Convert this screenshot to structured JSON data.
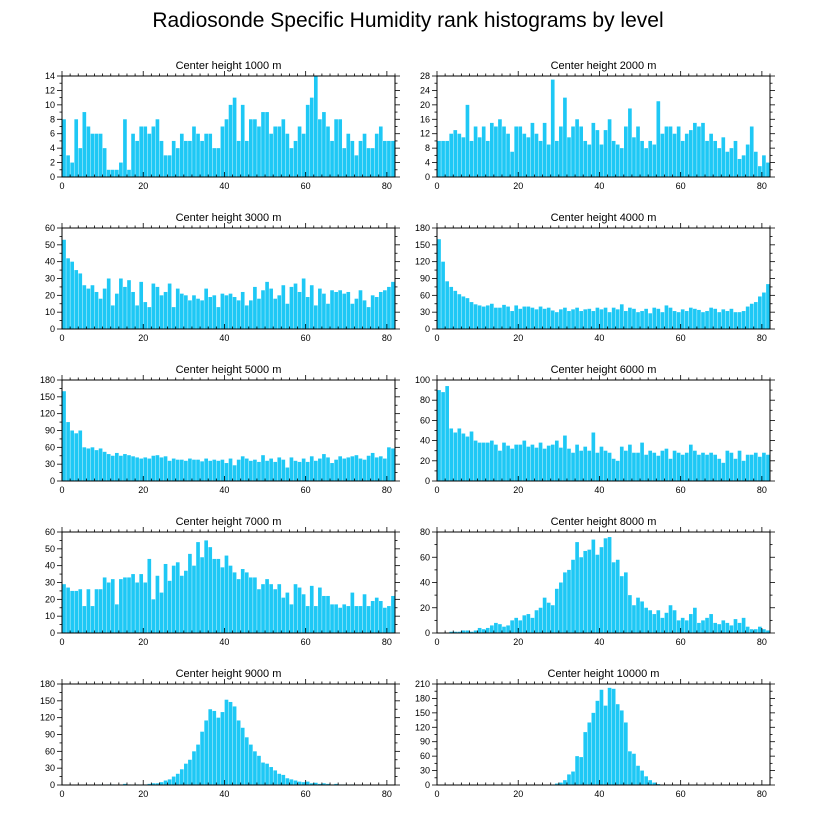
{
  "figure_title": "Radiosonde Specific Humidity rank histograms by level",
  "bar_color": "#1ec8f5",
  "axis_color": "#000000",
  "chart_data": [
    {
      "type": "bar",
      "title": "Center height 1000 m",
      "xlabel": "",
      "ylabel": "",
      "xlim": [
        0,
        82
      ],
      "xticks": [
        0,
        20,
        40,
        60,
        80
      ],
      "ylim": [
        0,
        14
      ],
      "yticks": [
        0,
        2,
        4,
        6,
        8,
        10,
        12,
        14
      ],
      "values": [
        8,
        3,
        2,
        8,
        4,
        9,
        7,
        6,
        6,
        6,
        4,
        1,
        1,
        1,
        2,
        8,
        1,
        6,
        5,
        7,
        7,
        6,
        7,
        8,
        5,
        3,
        3,
        5,
        4,
        6,
        5,
        5,
        7,
        6,
        5,
        6,
        6,
        4,
        4,
        7,
        8,
        10,
        11,
        5,
        10,
        5,
        8,
        8,
        7,
        9,
        9,
        6,
        7,
        7,
        8,
        6,
        4,
        5,
        7,
        6,
        10,
        11,
        14,
        8,
        9,
        7,
        5,
        8,
        8,
        4,
        6,
        5,
        3,
        5,
        6,
        4,
        4,
        6,
        7,
        5,
        5,
        5
      ]
    },
    {
      "type": "bar",
      "title": "Center height 2000 m",
      "xlabel": "",
      "ylabel": "",
      "xlim": [
        0,
        82
      ],
      "xticks": [
        0,
        20,
        40,
        60,
        80
      ],
      "ylim": [
        0,
        28
      ],
      "yticks": [
        0,
        4,
        8,
        12,
        16,
        20,
        24,
        28
      ],
      "values": [
        10,
        10,
        10,
        12,
        13,
        12,
        11,
        20,
        10,
        14,
        11,
        14,
        10,
        15,
        14,
        16,
        14,
        12,
        7,
        14,
        14,
        12,
        11,
        15,
        12,
        10,
        15,
        9,
        27,
        10,
        14,
        22,
        11,
        14,
        16,
        14,
        10,
        9,
        15,
        13,
        9,
        13,
        16,
        10,
        9,
        8,
        14,
        19,
        11,
        14,
        10,
        8,
        10,
        9,
        21,
        12,
        14,
        14,
        12,
        14,
        10,
        12,
        13,
        15,
        14,
        15,
        10,
        12,
        10,
        8,
        11,
        7,
        8,
        10,
        5,
        6,
        9,
        14,
        7,
        3,
        6,
        4
      ]
    },
    {
      "type": "bar",
      "title": "Center height 3000 m",
      "xlabel": "",
      "ylabel": "",
      "xlim": [
        0,
        82
      ],
      "xticks": [
        0,
        20,
        40,
        60,
        80
      ],
      "ylim": [
        0,
        60
      ],
      "yticks": [
        0,
        10,
        20,
        30,
        40,
        50,
        60
      ],
      "values": [
        53,
        42,
        40,
        35,
        33,
        26,
        24,
        26,
        22,
        18,
        24,
        30,
        14,
        21,
        30,
        25,
        29,
        22,
        14,
        28,
        16,
        13,
        27,
        25,
        20,
        22,
        27,
        13,
        24,
        21,
        20,
        17,
        20,
        18,
        17,
        24,
        19,
        20,
        13,
        21,
        20,
        21,
        19,
        17,
        22,
        14,
        17,
        25,
        18,
        23,
        28,
        24,
        18,
        20,
        26,
        15,
        25,
        27,
        22,
        30,
        19,
        26,
        14,
        24,
        21,
        15,
        23,
        22,
        23,
        21,
        22,
        15,
        18,
        23,
        17,
        13,
        20,
        19,
        22,
        23,
        25,
        28
      ]
    },
    {
      "type": "bar",
      "title": "Center height 4000 m",
      "xlabel": "",
      "ylabel": "",
      "xlim": [
        0,
        82
      ],
      "xticks": [
        0,
        20,
        40,
        60,
        80
      ],
      "ylim": [
        0,
        180
      ],
      "yticks": [
        0,
        30,
        60,
        90,
        120,
        150,
        180
      ],
      "values": [
        160,
        120,
        85,
        75,
        68,
        62,
        58,
        55,
        48,
        44,
        42,
        40,
        42,
        45,
        38,
        38,
        43,
        40,
        32,
        42,
        36,
        40,
        40,
        38,
        35,
        40,
        36,
        38,
        33,
        30,
        35,
        38,
        32,
        35,
        38,
        32,
        35,
        36,
        32,
        38,
        35,
        38,
        30,
        38,
        35,
        44,
        32,
        38,
        36,
        30,
        32,
        36,
        28,
        38,
        36,
        30,
        42,
        38,
        32,
        30,
        35,
        32,
        38,
        36,
        34,
        30,
        32,
        38,
        36,
        30,
        35,
        32,
        36,
        30,
        30,
        32,
        40,
        45,
        48,
        58,
        65,
        80
      ]
    },
    {
      "type": "bar",
      "title": "Center height 5000 m",
      "xlabel": "",
      "ylabel": "",
      "xlim": [
        0,
        82
      ],
      "xticks": [
        0,
        20,
        40,
        60,
        80
      ],
      "ylim": [
        0,
        180
      ],
      "yticks": [
        0,
        30,
        60,
        90,
        120,
        150,
        180
      ],
      "values": [
        160,
        105,
        90,
        85,
        90,
        60,
        58,
        60,
        55,
        58,
        52,
        48,
        45,
        50,
        45,
        48,
        46,
        44,
        42,
        40,
        42,
        40,
        45,
        46,
        42,
        44,
        36,
        40,
        38,
        38,
        36,
        40,
        38,
        38,
        35,
        40,
        36,
        38,
        36,
        38,
        32,
        40,
        28,
        38,
        44,
        40,
        36,
        38,
        34,
        46,
        36,
        40,
        34,
        42,
        38,
        24,
        42,
        36,
        34,
        40,
        34,
        44,
        36,
        40,
        48,
        42,
        32,
        38,
        44,
        40,
        42,
        44,
        46,
        40,
        38,
        45,
        50,
        42,
        44,
        40,
        60,
        58
      ]
    },
    {
      "type": "bar",
      "title": "Center height 6000 m",
      "xlabel": "",
      "ylabel": "",
      "xlim": [
        0,
        82
      ],
      "xticks": [
        0,
        20,
        40,
        60,
        80
      ],
      "ylim": [
        0,
        100
      ],
      "yticks": [
        0,
        20,
        40,
        60,
        80,
        100
      ],
      "values": [
        90,
        88,
        94,
        52,
        48,
        52,
        47,
        44,
        49,
        40,
        38,
        38,
        38,
        40,
        36,
        30,
        38,
        35,
        32,
        36,
        36,
        40,
        34,
        36,
        33,
        38,
        32,
        35,
        36,
        40,
        33,
        45,
        32,
        28,
        36,
        30,
        34,
        30,
        48,
        28,
        34,
        30,
        28,
        22,
        20,
        34,
        30,
        36,
        28,
        28,
        38,
        26,
        30,
        28,
        25,
        30,
        32,
        22,
        30,
        28,
        26,
        28,
        36,
        30,
        26,
        28,
        26,
        28,
        26,
        22,
        18,
        30,
        28,
        22,
        30,
        20,
        26,
        26,
        28,
        24,
        28,
        26
      ]
    },
    {
      "type": "bar",
      "title": "Center height 7000 m",
      "xlabel": "",
      "ylabel": "",
      "xlim": [
        0,
        82
      ],
      "xticks": [
        0,
        20,
        40,
        60,
        80
      ],
      "ylim": [
        0,
        60
      ],
      "yticks": [
        0,
        10,
        20,
        30,
        40,
        50,
        60
      ],
      "values": [
        29,
        27,
        25,
        25,
        26,
        16,
        26,
        16,
        26,
        26,
        33,
        30,
        32,
        17,
        32,
        33,
        33,
        35,
        30,
        35,
        30,
        44,
        20,
        34,
        24,
        41,
        31,
        40,
        42,
        34,
        37,
        47,
        40,
        54,
        45,
        55,
        51,
        44,
        44,
        39,
        46,
        40,
        36,
        32,
        38,
        36,
        33,
        33,
        26,
        29,
        32,
        29,
        26,
        29,
        21,
        24,
        17,
        29,
        27,
        23,
        16,
        28,
        16,
        27,
        22,
        22,
        17,
        17,
        15,
        17,
        16,
        24,
        16,
        16,
        23,
        16,
        19,
        21,
        19,
        15,
        16,
        22
      ]
    },
    {
      "type": "bar",
      "title": "Center height 8000 m",
      "xlabel": "",
      "ylabel": "",
      "xlim": [
        0,
        82
      ],
      "xticks": [
        0,
        20,
        40,
        60,
        80
      ],
      "ylim": [
        0,
        80
      ],
      "yticks": [
        0,
        20,
        40,
        60,
        80
      ],
      "values": [
        0,
        0,
        0,
        1,
        1,
        1,
        2,
        2,
        1,
        2,
        4,
        3,
        4,
        6,
        8,
        7,
        5,
        6,
        10,
        12,
        10,
        14,
        15,
        12,
        18,
        20,
        28,
        24,
        22,
        35,
        40,
        48,
        50,
        58,
        72,
        60,
        65,
        66,
        74,
        62,
        68,
        75,
        76,
        56,
        58,
        45,
        48,
        30,
        22,
        28,
        25,
        20,
        18,
        15,
        18,
        12,
        16,
        22,
        18,
        10,
        12,
        10,
        15,
        20,
        8,
        10,
        12,
        15,
        8,
        7,
        10,
        8,
        6,
        11,
        8,
        12,
        5,
        3,
        3,
        5,
        3,
        2
      ]
    },
    {
      "type": "bar",
      "title": "Center height 9000 m",
      "xlabel": "",
      "ylabel": "",
      "xlim": [
        0,
        82
      ],
      "xticks": [
        0,
        20,
        40,
        60,
        80
      ],
      "ylim": [
        0,
        180
      ],
      "yticks": [
        0,
        30,
        60,
        90,
        120,
        150,
        180
      ],
      "values": [
        0,
        0,
        0,
        0,
        0,
        0,
        0,
        0,
        0,
        1,
        0,
        1,
        1,
        0,
        0,
        2,
        1,
        0,
        1,
        0,
        1,
        2,
        3,
        3,
        5,
        8,
        10,
        15,
        20,
        28,
        38,
        45,
        60,
        72,
        95,
        115,
        135,
        132,
        120,
        130,
        152,
        148,
        140,
        115,
        102,
        85,
        72,
        60,
        52,
        40,
        38,
        32,
        26,
        20,
        18,
        12,
        10,
        8,
        6,
        5,
        6,
        3,
        4,
        2,
        3,
        2,
        1,
        2,
        1,
        1,
        0,
        1,
        0,
        0,
        0,
        0,
        0,
        0,
        0,
        0,
        0,
        0
      ]
    },
    {
      "type": "bar",
      "title": "Center height 10000 m",
      "xlabel": "",
      "ylabel": "",
      "xlim": [
        0,
        82
      ],
      "xticks": [
        0,
        20,
        40,
        60,
        80
      ],
      "ylim": [
        0,
        210
      ],
      "yticks": [
        0,
        30,
        60,
        90,
        120,
        150,
        180,
        210
      ],
      "values": [
        0,
        0,
        0,
        0,
        0,
        0,
        0,
        0,
        0,
        0,
        0,
        0,
        0,
        0,
        0,
        0,
        0,
        0,
        0,
        0,
        0,
        0,
        0,
        0,
        0,
        0,
        0,
        0,
        1,
        3,
        5,
        10,
        22,
        28,
        60,
        58,
        110,
        130,
        150,
        175,
        198,
        165,
        202,
        200,
        168,
        155,
        130,
        70,
        65,
        40,
        30,
        18,
        10,
        5,
        2,
        1,
        1,
        0,
        0,
        0,
        0,
        0,
        0,
        0,
        0,
        0,
        0,
        0,
        0,
        0,
        0,
        0,
        0,
        0,
        0,
        0,
        0,
        0,
        0,
        0,
        0,
        0
      ]
    }
  ]
}
